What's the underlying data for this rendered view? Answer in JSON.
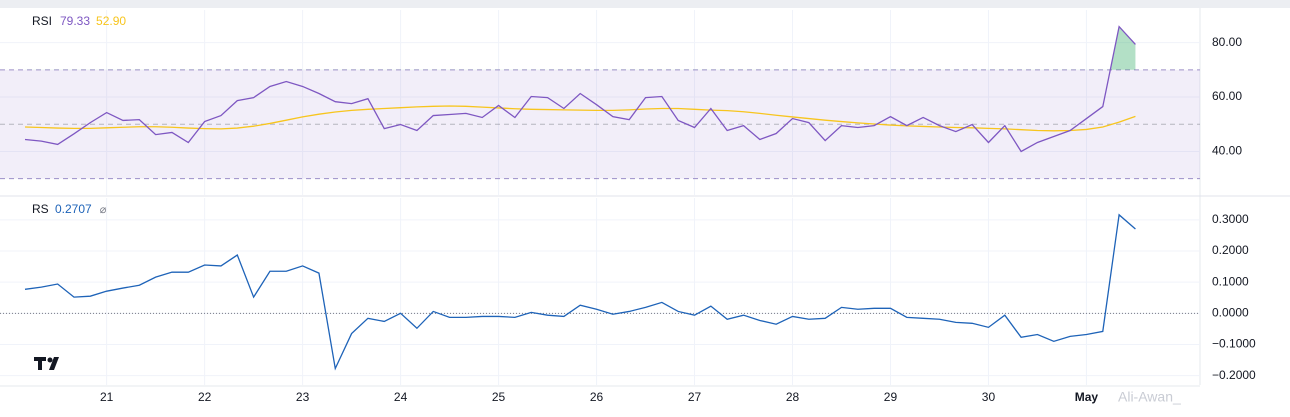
{
  "chart_data": [
    {
      "type": "line",
      "title": "RSI",
      "ylim": [
        24,
        92
      ],
      "yticks": [
        {
          "value": 40,
          "label": "40.00"
        },
        {
          "value": 60,
          "label": "60.00"
        },
        {
          "value": 80,
          "label": "80.00"
        }
      ],
      "bands": {
        "upper": 70,
        "middle": 50,
        "lower": 30
      },
      "grid": true,
      "series": [
        {
          "color": "#7e57c2",
          "values": [
            44.4,
            43.8,
            42.6,
            46.5,
            50.6,
            54.3,
            51.4,
            51.7,
            46.2,
            47,
            43.3,
            51,
            53.2,
            58.7,
            59.8,
            63.9,
            65.7,
            63.9,
            61.3,
            58.3,
            57.6,
            59.4,
            48.4,
            49.9,
            47.7,
            53.2,
            53.6,
            54,
            52.5,
            56.9,
            52.5,
            60.2,
            59.8,
            55.8,
            61.3,
            57.2,
            52.8,
            51.7,
            59.8,
            60.2,
            51.4,
            48.8,
            55.8,
            47.7,
            49.5,
            44.4,
            46.6,
            52.1,
            50.6,
            44,
            49.5,
            48.8,
            49.5,
            52.8,
            49.5,
            52.5,
            49.5,
            47.3,
            49.9,
            43.3,
            49.5,
            40,
            43.3,
            45.5,
            47.7,
            52.1,
            56.5,
            85.9,
            79.33
          ]
        },
        {
          "color": "#f7c51e",
          "values": [
            49.0,
            48.8,
            48.6,
            48.5,
            48.5,
            48.7,
            48.9,
            49.1,
            49.1,
            48.9,
            48.6,
            48.4,
            48.3,
            48.6,
            49.3,
            50.3,
            51.5,
            52.7,
            53.7,
            54.5,
            55.1,
            55.5,
            55.8,
            56.1,
            56.4,
            56.6,
            56.7,
            56.6,
            56.3,
            56.0,
            55.7,
            55.5,
            55.4,
            55.3,
            55.2,
            55.1,
            55.1,
            55.3,
            55.6,
            55.8,
            55.8,
            55.5,
            55.2,
            55.0,
            54.6,
            54.0,
            53.3,
            52.7,
            52.1,
            51.5,
            51.0,
            50.5,
            50.1,
            49.7,
            49.4,
            49.2,
            49.0,
            48.8,
            48.7,
            48.5,
            48.3,
            48.0,
            47.7,
            47.6,
            47.7,
            48.1,
            49.0,
            50.8,
            52.9
          ],
          "value_labels": [
            null,
            null,
            null,
            null,
            null,
            null,
            null,
            null,
            null,
            null,
            null,
            null,
            null,
            null,
            null,
            null,
            null,
            null,
            null,
            null,
            null,
            null,
            null,
            null,
            null,
            null,
            null,
            null,
            null,
            null,
            null,
            null,
            null,
            null,
            null,
            null,
            null,
            null,
            null,
            null,
            null,
            null,
            null,
            null,
            null,
            null,
            null,
            null,
            null,
            null,
            null,
            null,
            null,
            null,
            null,
            null,
            null,
            null,
            null,
            null,
            null,
            null,
            null,
            null,
            null,
            null,
            null,
            null,
            "52.90"
          ]
        }
      ]
    },
    {
      "type": "line",
      "title": "RS",
      "status_icon": "⌀",
      "ylim": [
        -0.23,
        0.37
      ],
      "yticks": [
        {
          "value": -0.2,
          "label": "−0.2000"
        },
        {
          "value": -0.1,
          "label": "−0.1000"
        },
        {
          "value": 0,
          "label": "0.0000"
        },
        {
          "value": 0.1,
          "label": "0.1000"
        },
        {
          "value": 0.2,
          "label": "0.2000"
        },
        {
          "value": 0.3,
          "label": "0.3000"
        }
      ],
      "baseline": 0,
      "grid": true,
      "categories": [
        null,
        null,
        null,
        null,
        null,
        "21",
        null,
        null,
        null,
        null,
        null,
        "22",
        null,
        null,
        null,
        null,
        null,
        "23",
        null,
        null,
        null,
        null,
        null,
        "24",
        null,
        null,
        null,
        null,
        null,
        "25",
        null,
        null,
        null,
        null,
        null,
        "26",
        null,
        null,
        null,
        null,
        null,
        "27",
        null,
        null,
        null,
        null,
        null,
        "28",
        null,
        null,
        null,
        null,
        null,
        "29",
        null,
        null,
        null,
        null,
        null,
        "30",
        null,
        null,
        null,
        null,
        null,
        "May",
        null,
        null,
        null
      ],
      "series": [
        {
          "color": "#1e63b8",
          "values": [
            0.077,
            0.084,
            0.094,
            0.052,
            0.055,
            0.071,
            0.081,
            0.09,
            0.116,
            0.132,
            0.132,
            0.155,
            0.152,
            0.187,
            0.052,
            0.135,
            0.135,
            0.152,
            0.129,
            -0.177,
            -0.065,
            -0.016,
            -0.026,
            0,
            -0.048,
            0.006,
            -0.013,
            -0.013,
            -0.01,
            -0.01,
            -0.013,
            0.003,
            -0.006,
            -0.01,
            0.026,
            0.013,
            -0.003,
            0.006,
            0.019,
            0.035,
            0.006,
            -0.006,
            0.023,
            -0.019,
            -0.006,
            -0.023,
            -0.035,
            -0.01,
            -0.019,
            -0.016,
            0.019,
            0.013,
            0.016,
            0.016,
            -0.013,
            -0.016,
            -0.019,
            -0.029,
            -0.032,
            -0.045,
            -0.006,
            -0.077,
            -0.068,
            -0.09,
            -0.074,
            -0.068,
            -0.058,
            0.316,
            0.2707
          ]
        }
      ]
    }
  ],
  "watermark": "Ali-Awan_"
}
